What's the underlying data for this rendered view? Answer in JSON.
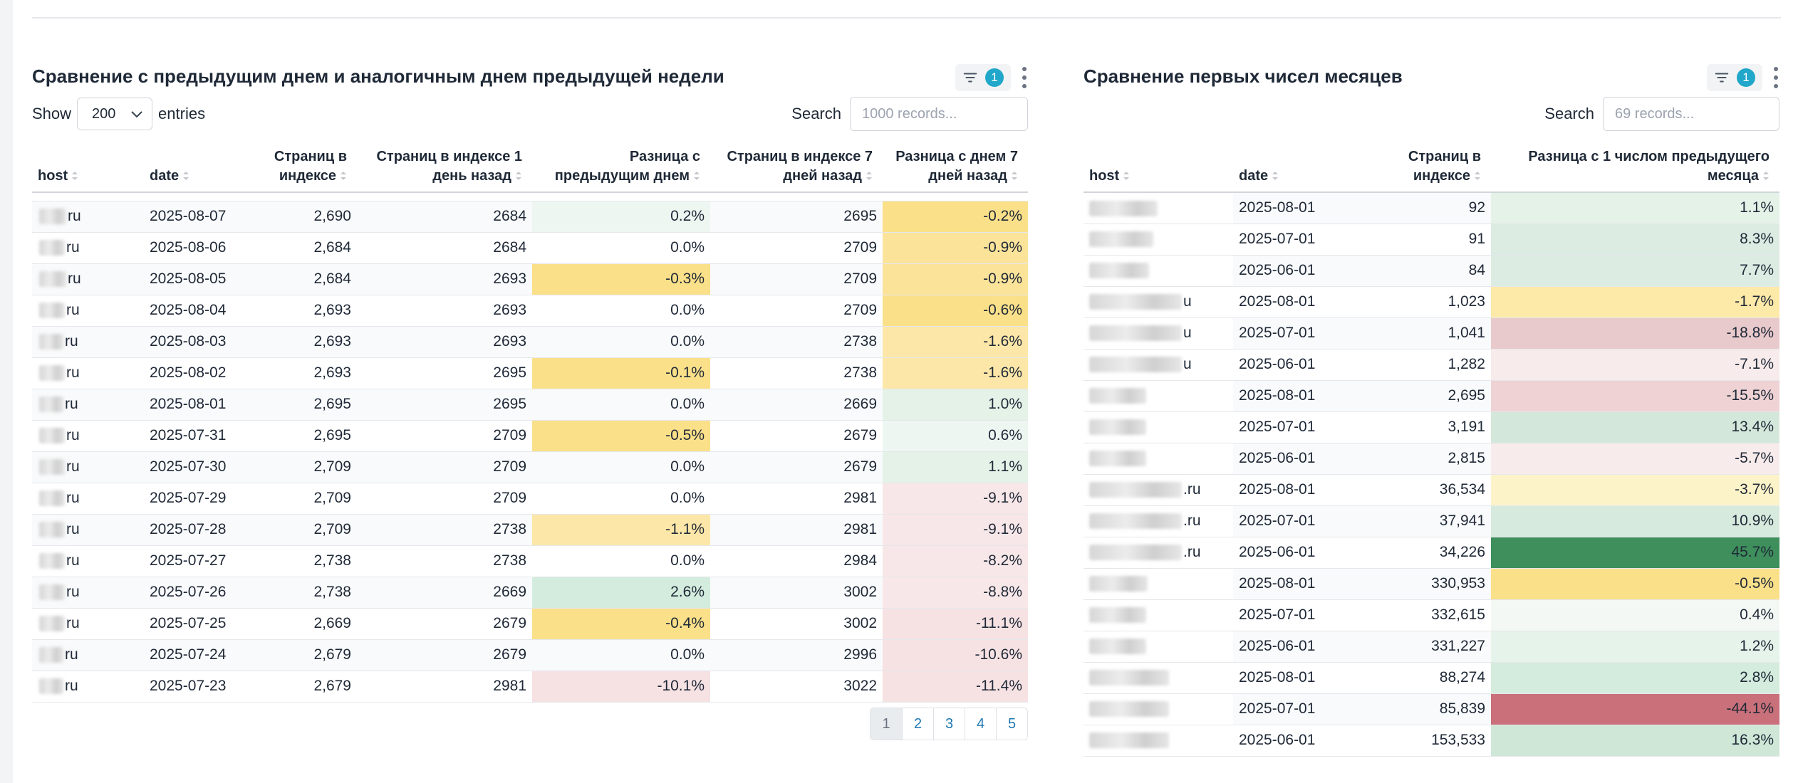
{
  "left_table": {
    "title": "Сравнение с предыдущим днем и аналогичным днем предыдущей недели",
    "filter_count": "1",
    "show_label": "Show",
    "entries_label": "entries",
    "page_size": "200",
    "search_label": "Search",
    "search_placeholder": "1000 records...",
    "columns": [
      "host",
      "date",
      "Страниц в индексе",
      "Страниц в индексе 1 день назад",
      "Разница с предыдущим днем",
      "Страниц в индексе 7 дней назад",
      "Разница с днем 7 дней назад"
    ],
    "rows": [
      {
        "host": "ru",
        "date": "2025-08-07",
        "pages": "2,690",
        "pages_1d": "2684",
        "diff_1d": "0.2%",
        "pages_7d": "2695",
        "diff_7d": "-0.2%",
        "c1": "#eef6f1",
        "c7": "#fbe08a"
      },
      {
        "host": "ru",
        "date": "2025-08-06",
        "pages": "2,684",
        "pages_1d": "2684",
        "diff_1d": "0.0%",
        "pages_7d": "2709",
        "diff_7d": "-0.9%",
        "c1": "",
        "c7": "#fbe39a"
      },
      {
        "host": "ru",
        "date": "2025-08-05",
        "pages": "2,684",
        "pages_1d": "2693",
        "diff_1d": "-0.3%",
        "pages_7d": "2709",
        "diff_7d": "-0.9%",
        "c1": "#fbe08a",
        "c7": "#fbe39a"
      },
      {
        "host": "ru",
        "date": "2025-08-04",
        "pages": "2,693",
        "pages_1d": "2693",
        "diff_1d": "0.0%",
        "pages_7d": "2709",
        "diff_7d": "-0.6%",
        "c1": "",
        "c7": "#fbe08a"
      },
      {
        "host": "ru",
        "date": "2025-08-03",
        "pages": "2,693",
        "pages_1d": "2693",
        "diff_1d": "0.0%",
        "pages_7d": "2738",
        "diff_7d": "-1.6%",
        "c1": "",
        "c7": "#fce7a8"
      },
      {
        "host": "ru",
        "date": "2025-08-02",
        "pages": "2,693",
        "pages_1d": "2695",
        "diff_1d": "-0.1%",
        "pages_7d": "2738",
        "diff_7d": "-1.6%",
        "c1": "#fbe08a",
        "c7": "#fce7a8"
      },
      {
        "host": "ru",
        "date": "2025-08-01",
        "pages": "2,695",
        "pages_1d": "2695",
        "diff_1d": "0.0%",
        "pages_7d": "2669",
        "diff_7d": "1.0%",
        "c1": "",
        "c7": "#e4f2e8"
      },
      {
        "host": "ru",
        "date": "2025-07-31",
        "pages": "2,695",
        "pages_1d": "2709",
        "diff_1d": "-0.5%",
        "pages_7d": "2679",
        "diff_7d": "0.6%",
        "c1": "#fbe08a",
        "c7": "#eef6f1"
      },
      {
        "host": "ru",
        "date": "2025-07-30",
        "pages": "2,709",
        "pages_1d": "2709",
        "diff_1d": "0.0%",
        "pages_7d": "2679",
        "diff_7d": "1.1%",
        "c1": "",
        "c7": "#e4f2e8"
      },
      {
        "host": "ru",
        "date": "2025-07-29",
        "pages": "2,709",
        "pages_1d": "2709",
        "diff_1d": "0.0%",
        "pages_7d": "2981",
        "diff_7d": "-9.1%",
        "c1": "",
        "c7": "#f8e7e8"
      },
      {
        "host": "ru",
        "date": "2025-07-28",
        "pages": "2,709",
        "pages_1d": "2738",
        "diff_1d": "-1.1%",
        "pages_7d": "2981",
        "diff_7d": "-9.1%",
        "c1": "#fce7a8",
        "c7": "#f8e7e8"
      },
      {
        "host": "ru",
        "date": "2025-07-27",
        "pages": "2,738",
        "pages_1d": "2738",
        "diff_1d": "0.0%",
        "pages_7d": "2984",
        "diff_7d": "-8.2%",
        "c1": "",
        "c7": "#f8e7e8"
      },
      {
        "host": "ru",
        "date": "2025-07-26",
        "pages": "2,738",
        "pages_1d": "2669",
        "diff_1d": "2.6%",
        "pages_7d": "3002",
        "diff_7d": "-8.8%",
        "c1": "#d4ecdd",
        "c7": "#f8e7e8"
      },
      {
        "host": "ru",
        "date": "2025-07-25",
        "pages": "2,669",
        "pages_1d": "2679",
        "diff_1d": "-0.4%",
        "pages_7d": "3002",
        "diff_7d": "-11.1%",
        "c1": "#fbe08a",
        "c7": "#f6e2e3"
      },
      {
        "host": "ru",
        "date": "2025-07-24",
        "pages": "2,679",
        "pages_1d": "2679",
        "diff_1d": "0.0%",
        "pages_7d": "2996",
        "diff_7d": "-10.6%",
        "c1": "",
        "c7": "#f6e2e3"
      },
      {
        "host": "ru",
        "date": "2025-07-23",
        "pages": "2,679",
        "pages_1d": "2981",
        "diff_1d": "-10.1%",
        "pages_7d": "3022",
        "diff_7d": "-11.4%",
        "c1": "#f6e2e3",
        "c7": "#f6e2e3"
      }
    ],
    "pages": [
      "1",
      "2",
      "3",
      "4",
      "5"
    ],
    "active_page": "1"
  },
  "right_table": {
    "title": "Сравнение первых чисел месяцев",
    "filter_count": "1",
    "search_label": "Search",
    "search_placeholder": "69 records...",
    "columns": [
      "host",
      "date",
      "Страниц в индексе",
      "Разница с 1 числом предыдущего месяца"
    ],
    "rows": [
      {
        "host": "",
        "date": "2025-08-01",
        "pages": "92",
        "diff": "1.1%",
        "c": "#e4f2e8"
      },
      {
        "host": "",
        "date": "2025-07-01",
        "pages": "91",
        "diff": "8.3%",
        "c": "#dcece2"
      },
      {
        "host": "",
        "date": "2025-06-01",
        "pages": "84",
        "diff": "7.7%",
        "c": "#dcece2"
      },
      {
        "host": "u",
        "date": "2025-08-01",
        "pages": "1,023",
        "diff": "-1.7%",
        "c": "#fde9a8"
      },
      {
        "host": "u",
        "date": "2025-07-01",
        "pages": "1,041",
        "diff": "-18.8%",
        "c": "#e8c9cc"
      },
      {
        "host": "u",
        "date": "2025-06-01",
        "pages": "1,282",
        "diff": "-7.1%",
        "c": "#f7ebeb"
      },
      {
        "host": "",
        "date": "2025-08-01",
        "pages": "2,695",
        "diff": "-15.5%",
        "c": "#eed2d4"
      },
      {
        "host": "",
        "date": "2025-07-01",
        "pages": "3,191",
        "diff": "13.4%",
        "c": "#d3e8da"
      },
      {
        "host": "",
        "date": "2025-06-01",
        "pages": "2,815",
        "diff": "-5.7%",
        "c": "#f7ebeb"
      },
      {
        "host": ".ru",
        "date": "2025-08-01",
        "pages": "36,534",
        "diff": "-3.7%",
        "c": "#fdf3c9"
      },
      {
        "host": ".ru",
        "date": "2025-07-01",
        "pages": "37,941",
        "diff": "10.9%",
        "c": "#d6ead d"
      },
      {
        "host": ".ru",
        "date": "2025-06-01",
        "pages": "34,226",
        "diff": "45.7%",
        "c": "#3e8f5c"
      },
      {
        "host": "",
        "date": "2025-08-01",
        "pages": "330,953",
        "diff": "-0.5%",
        "c": "#fbe08a"
      },
      {
        "host": "",
        "date": "2025-07-01",
        "pages": "332,615",
        "diff": "0.4%",
        "c": "#f3f8f4"
      },
      {
        "host": "",
        "date": "2025-06-01",
        "pages": "331,227",
        "diff": "1.2%",
        "c": "#e6f3ea"
      },
      {
        "host": "",
        "date": "2025-08-01",
        "pages": "88,274",
        "diff": "2.8%",
        "c": "#d4ecdd"
      },
      {
        "host": "",
        "date": "2025-07-01",
        "pages": "85,839",
        "diff": "-44.1%",
        "c": "#c9707a"
      },
      {
        "host": "",
        "date": "2025-06-01",
        "pages": "153,533",
        "diff": "16.3%",
        "c": "#cfe7d7"
      }
    ]
  }
}
